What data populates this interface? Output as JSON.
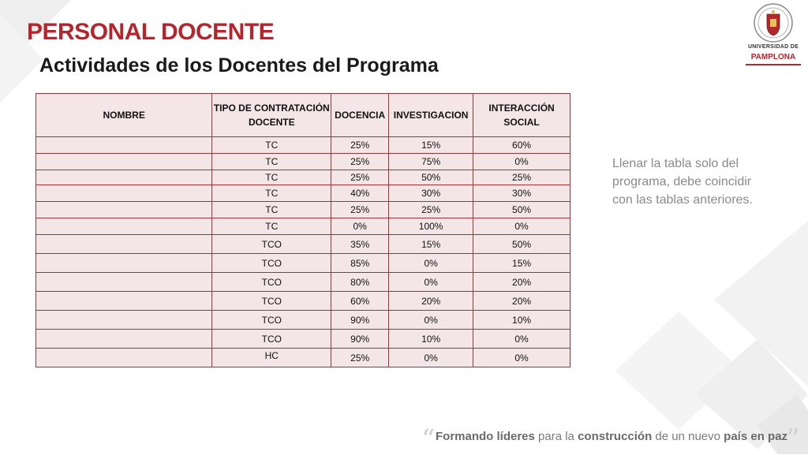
{
  "slide": {
    "title": "PERSONAL DOCENTE",
    "subtitle": "Actividades de los Docentes del Programa"
  },
  "logo": {
    "name": "university-crest-icon",
    "line1": "UNIVERSIDAD DE",
    "line2": "PAMPLONA",
    "accent_color": "#b3262d"
  },
  "table": {
    "headers": [
      "NOMBRE",
      "TIPO DE CONTRATACIÓN DOCENTE",
      "DOCENCIA",
      "INVESTIGACION",
      "INTERACCIÓN SOCIAL"
    ],
    "rows": [
      [
        "",
        "TC",
        "25%",
        "15%",
        "60%"
      ],
      [
        "",
        "TC",
        "25%",
        "75%",
        "0%"
      ],
      [
        "",
        "TC",
        "25%",
        "50%",
        "25%"
      ],
      [
        "",
        "TC",
        "40%",
        "30%",
        "30%"
      ],
      [
        "",
        "TC",
        "25%",
        "25%",
        "50%"
      ],
      [
        "",
        "TC",
        "0%",
        "100%",
        "0%"
      ],
      [
        "",
        "TCO",
        "35%",
        "15%",
        "50%"
      ],
      [
        "",
        "TCO",
        "85%",
        "0%",
        "15%"
      ],
      [
        "",
        "TCO",
        "80%",
        "0%",
        "20%"
      ],
      [
        "",
        "TCO",
        "60%",
        "20%",
        "20%"
      ],
      [
        "",
        "TCO",
        "90%",
        "0%",
        "10%"
      ],
      [
        "",
        "TCO",
        "90%",
        "10%",
        "0%"
      ],
      [
        "",
        "HC",
        "25%",
        "0%",
        "0%"
      ]
    ],
    "border_color": "#a03238",
    "fill_color": "#f4e6e7"
  },
  "note": "Llenar la tabla solo del programa, debe coincidir  con las tablas anteriores.",
  "footer": {
    "w1": "Formando líderes",
    "w2": " para la ",
    "w3": "construcción",
    "w4": " de un nuevo ",
    "w5": "país en paz",
    "quote_open": "“",
    "quote_close": "”"
  }
}
